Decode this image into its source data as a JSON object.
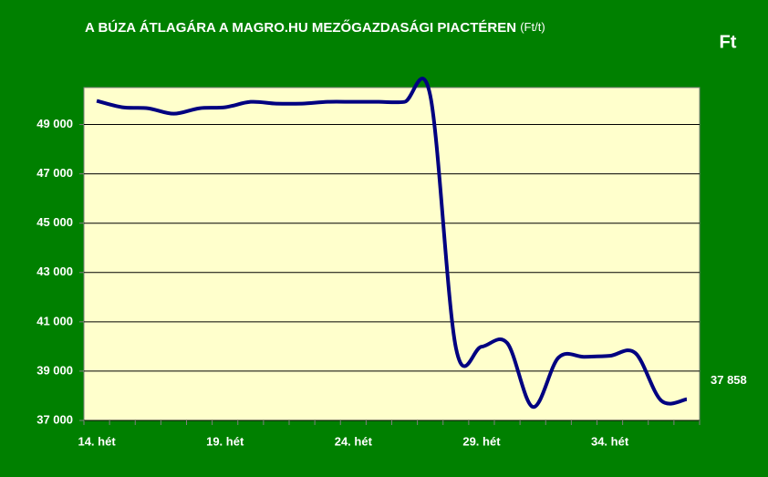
{
  "chart_data": {
    "type": "line",
    "title": "A BÚZA ÁTLAGÁRA A MAGRO.HU MEZŐGAZDASÁGI PIACTÉREN",
    "title_unit": "(Ft/t)",
    "y_label": "Ft",
    "categories": [
      "14. hét",
      null,
      null,
      null,
      null,
      "19. hét",
      null,
      null,
      null,
      null,
      "24. hét",
      null,
      null,
      null,
      null,
      "29. hét",
      null,
      null,
      null,
      null,
      "34. hét",
      null,
      null,
      null
    ],
    "series": [
      {
        "color": "#000080",
        "values": [
          49960,
          49700,
          49660,
          49440,
          49660,
          49700,
          49920,
          49850,
          49850,
          49920,
          49920,
          49920,
          49920,
          50180,
          39950,
          39990,
          40140,
          37550,
          39550,
          39580,
          39620,
          39730,
          37810,
          37858
        ],
        "value_labels": [
          null,
          null,
          null,
          null,
          null,
          null,
          null,
          null,
          null,
          null,
          null,
          null,
          null,
          null,
          null,
          null,
          null,
          null,
          null,
          null,
          null,
          null,
          null,
          "37 858"
        ]
      }
    ],
    "ylim": [
      37000,
      50500
    ],
    "yticks": [
      {
        "value": 37000,
        "label": "37 000"
      },
      {
        "value": 39000,
        "label": "39 000"
      },
      {
        "value": 41000,
        "label": "41 000"
      },
      {
        "value": 43000,
        "label": "43 000"
      },
      {
        "value": 45000,
        "label": "45 000"
      },
      {
        "value": 47000,
        "label": "47 000"
      },
      {
        "value": 49000,
        "label": "49 000"
      }
    ],
    "grid": true,
    "plot_color": "#ffffcc"
  }
}
